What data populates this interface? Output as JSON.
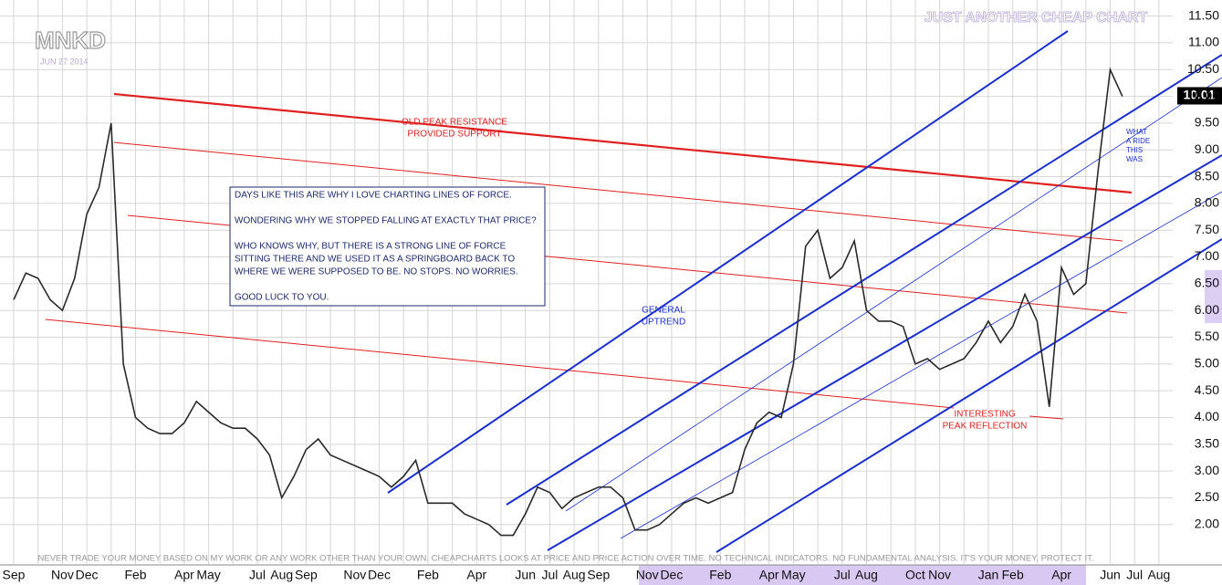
{
  "chart_data": {
    "type": "line",
    "title": "MNKD",
    "subtitle": "JUN 27 2014",
    "watermark": "JUST ANOTHER CHEAP CHART",
    "categories": [
      "Sep",
      null,
      null,
      null,
      "Nov",
      null,
      "Dec",
      null,
      null,
      null,
      "Feb",
      null,
      null,
      null,
      "Apr",
      null,
      "May",
      null,
      null,
      null,
      "Jul",
      null,
      "Aug",
      null,
      "Sep",
      null,
      null,
      null,
      "Nov",
      null,
      "Dec",
      null,
      null,
      null,
      "Feb",
      null,
      null,
      null,
      "Apr",
      null,
      null,
      null,
      "Jun",
      null,
      "Jul",
      null,
      "Aug",
      null,
      "Sep",
      null,
      null,
      null,
      "Nov",
      null,
      "Dec",
      null,
      null,
      null,
      "Feb",
      null,
      null,
      null,
      "Apr",
      null,
      "May",
      null,
      null,
      null,
      "Jul",
      null,
      "Aug",
      null,
      null,
      null,
      "Oct",
      null,
      "Nov",
      null,
      null,
      null,
      "Jan",
      null,
      "Feb",
      null,
      null,
      null,
      "Apr",
      null,
      null,
      null,
      "Jun",
      null,
      "Jul",
      null,
      "Aug",
      null
    ],
    "series": [
      {
        "name": "MNKD",
        "color": "#2a2a2a",
        "values": [
          6.2,
          6.7,
          6.6,
          6.2,
          6.0,
          6.6,
          7.8,
          8.3,
          9.5,
          5.0,
          4.0,
          3.8,
          3.7,
          3.7,
          3.9,
          4.3,
          4.1,
          3.9,
          3.8,
          3.8,
          3.6,
          3.3,
          2.5,
          2.9,
          3.4,
          3.6,
          3.3,
          3.2,
          3.1,
          3.0,
          2.9,
          2.7,
          2.9,
          3.2,
          2.4,
          2.4,
          2.4,
          2.2,
          2.1,
          2.0,
          1.8,
          1.8,
          2.2,
          2.7,
          2.6,
          2.3,
          2.5,
          2.6,
          2.7,
          2.7,
          2.5,
          1.9,
          1.9,
          2.0,
          2.2,
          2.4,
          2.5,
          2.4,
          2.5,
          2.6,
          3.4,
          3.9,
          4.1,
          4.0,
          5.0,
          7.2,
          7.5,
          6.6,
          6.8,
          7.3,
          6.0,
          5.8,
          5.8,
          5.7,
          5.0,
          5.1,
          4.9,
          5.0,
          5.1,
          5.4,
          5.8,
          5.4,
          5.7,
          6.3,
          5.8,
          4.2,
          6.8,
          6.3,
          6.5,
          8.6,
          10.5,
          10.0,
          null,
          null,
          null,
          null
        ]
      }
    ],
    "ylim": [
      1.4,
      11.8
    ],
    "yticks": [
      {
        "value": 2,
        "label": "2.00"
      },
      {
        "value": 2.5,
        "label": "2.50"
      },
      {
        "value": 3,
        "label": "3.00"
      },
      {
        "value": 3.5,
        "label": "3.50"
      },
      {
        "value": 4,
        "label": "4.00"
      },
      {
        "value": 4.5,
        "label": "4.50"
      },
      {
        "value": 5,
        "label": "5.00"
      },
      {
        "value": 5.5,
        "label": "5.50"
      },
      {
        "value": 6,
        "label": "6.00"
      },
      {
        "value": 6.5,
        "label": "6.50"
      },
      {
        "value": 7,
        "label": "7.00"
      },
      {
        "value": 7.5,
        "label": "7.50"
      },
      {
        "value": 8,
        "label": "8.00"
      },
      {
        "value": 8.5,
        "label": "8.50"
      },
      {
        "value": 9,
        "label": "9.00"
      },
      {
        "value": 9.5,
        "label": "9.50"
      },
      {
        "value": 10,
        "label": "10.00"
      },
      {
        "value": 10.5,
        "label": "10.50"
      },
      {
        "value": 11,
        "label": "11.00"
      },
      {
        "value": 11.5,
        "label": "11.50"
      }
    ],
    "last_price": {
      "value": 10.01,
      "label": "10.01"
    },
    "grid": true,
    "note_box": [
      "DAYS LIKE THIS ARE WHY I LOVE CHARTING LINES OF FORCE.",
      "WONDERING WHY WE STOPPED FALLING AT EXACTLY THAT PRICE?",
      "WHO KNOWS WHY, BUT THERE IS A STRONG LINE OF FORCE",
      "SITTING THERE AND WE USED IT AS A SPRINGBOARD BACK TO",
      "WHERE WE WERE SUPPOSED TO BE. NO STOPS. NO WORRIES.",
      "GOOD LUCK TO YOU."
    ],
    "annotations": [
      [
        "OLD PEAK RESISTANCE",
        "PROVIDED SUPPORT"
      ],
      [
        "GENERAL",
        "UPTREND"
      ],
      [
        "WHAT",
        "A RIDE",
        "THIS",
        "WAS"
      ],
      [
        "INTERESTING",
        "PEAK REFLECTION"
      ]
    ],
    "footer": "NEVER TRADE YOUR MONEY BASED ON MY WORK OR ANY WORK OTHER THAN YOUR OWN. CHEAPCHARTS LOOKS AT PRICE AND PRICE ACTION OVER TIME. NO TECHNICAL INDICATORS. NO FUNDAMENTAL ANALYSIS. IT'S YOUR MONEY. PROTECT IT."
  }
}
